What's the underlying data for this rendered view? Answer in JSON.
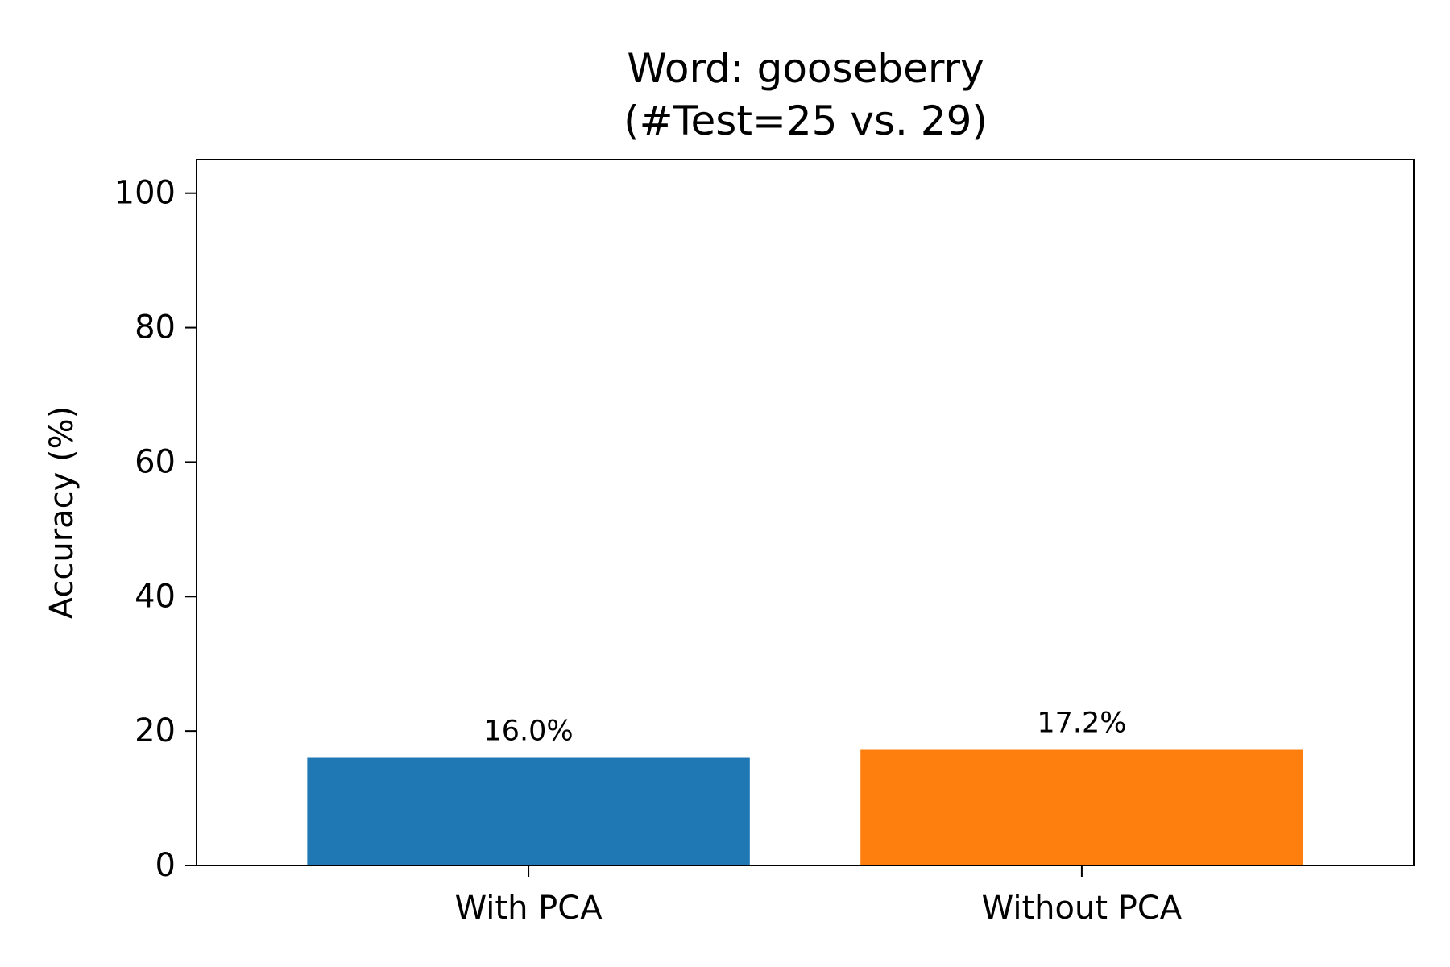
{
  "chart_data": {
    "type": "bar",
    "title": "Word: gooseberry",
    "subtitle": "(#Test=25 vs. 29)",
    "xlabel": "",
    "ylabel": "Accuracy (%)",
    "ylim": [
      0,
      105
    ],
    "yticks": [
      0,
      20,
      40,
      60,
      80,
      100
    ],
    "categories": [
      "With PCA",
      "Without PCA"
    ],
    "values": [
      16.0,
      17.2
    ],
    "value_labels": [
      "16.0%",
      "17.2%"
    ],
    "colors": [
      "#1f77b4",
      "#ff7f0e"
    ],
    "grid": false,
    "legend": "none"
  }
}
